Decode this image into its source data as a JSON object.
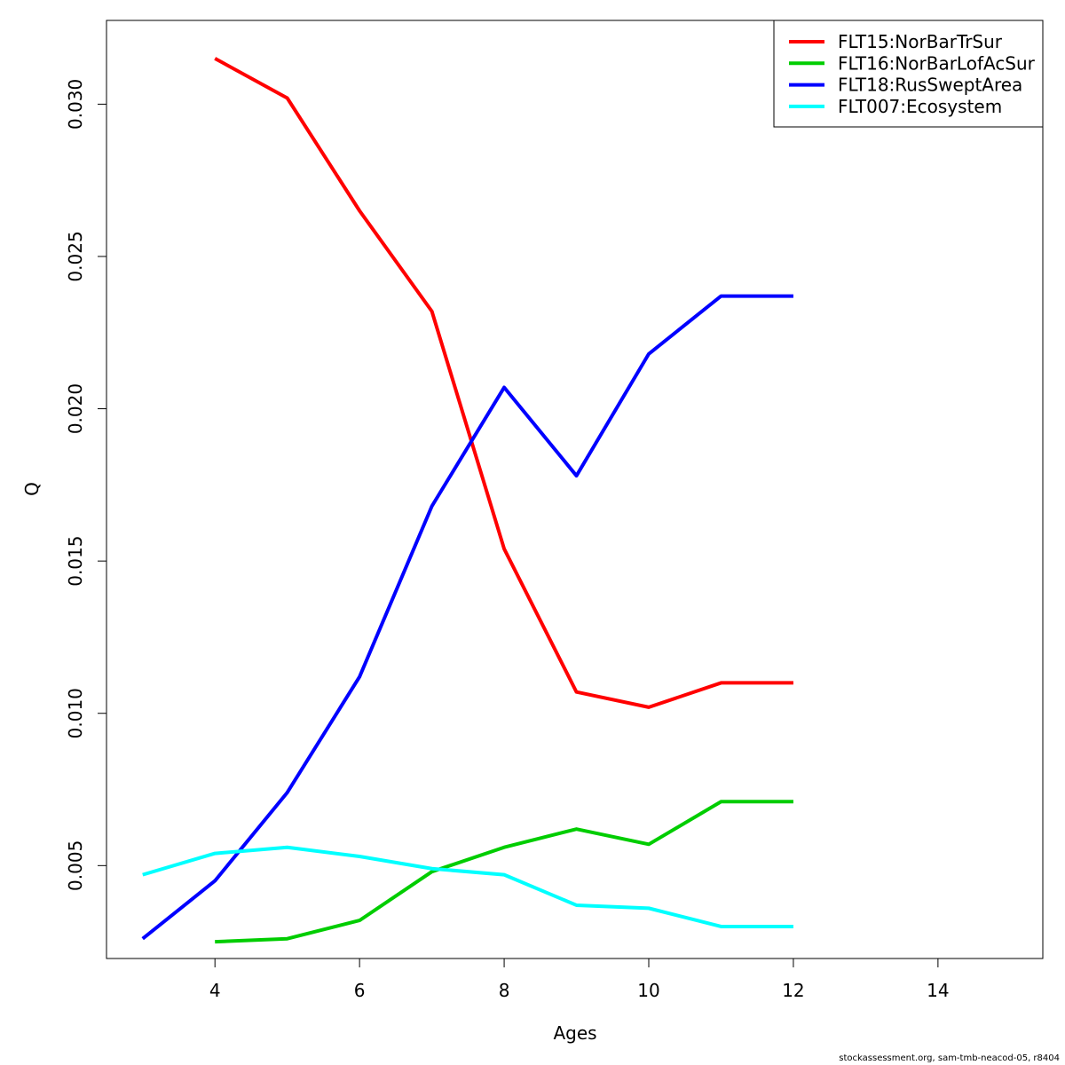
{
  "chart_data": {
    "type": "line",
    "xlabel": "Ages",
    "ylabel": "Q",
    "xlim": [
      2.5,
      15.45
    ],
    "ylim": [
      1.95,
      32.75
    ],
    "y_scale_note": "values x1e-3",
    "x_ticks": [
      4,
      6,
      8,
      10,
      12,
      14
    ],
    "y_ticks": [
      5,
      10,
      15,
      20,
      25,
      30
    ],
    "y_tick_labels": [
      "0.005",
      "0.010",
      "0.015",
      "0.020",
      "0.025",
      "0.030"
    ],
    "legend_position": "top-right",
    "series": [
      {
        "name": "FLT15:NorBarTrSur",
        "color": "#ff0000",
        "x": [
          4,
          5,
          6,
          7,
          8,
          9,
          10,
          11,
          12
        ],
        "values": [
          0.0315,
          0.0302,
          0.0265,
          0.0232,
          0.0154,
          0.0107,
          0.0102,
          0.011,
          0.011
        ]
      },
      {
        "name": "FLT16:NorBarLofAcSur",
        "color": "#00cd00",
        "x": [
          4,
          5,
          6,
          7,
          8,
          9,
          10,
          11,
          12
        ],
        "values": [
          0.0025,
          0.0026,
          0.0032,
          0.0048,
          0.0056,
          0.0062,
          0.0057,
          0.0071,
          0.0071
        ]
      },
      {
        "name": "FLT18:RusSweptArea",
        "color": "#0000ff",
        "x": [
          3,
          4,
          5,
          6,
          7,
          8,
          9,
          10,
          11,
          12
        ],
        "values": [
          0.0026,
          0.0045,
          0.0074,
          0.0112,
          0.0168,
          0.0207,
          0.0178,
          0.0218,
          0.0237,
          0.0237
        ]
      },
      {
        "name": "FLT007:Ecosystem",
        "color": "#00ffff",
        "x": [
          3,
          4,
          5,
          6,
          7,
          8,
          9,
          10,
          11,
          12
        ],
        "values": [
          0.0047,
          0.0054,
          0.0056,
          0.0053,
          0.0049,
          0.0047,
          0.0037,
          0.0036,
          0.003,
          0.003
        ]
      }
    ]
  },
  "footer": "stockassessment.org, sam-tmb-neacod-05, r8404"
}
